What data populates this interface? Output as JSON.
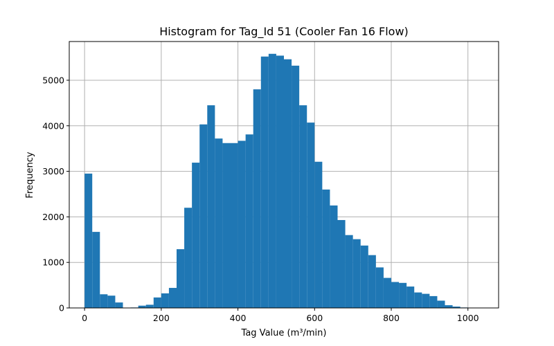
{
  "chart_data": {
    "type": "bar",
    "title": "Histogram for Tag_Id 51 (Cooler Fan 16 Flow)",
    "xlabel": "Tag Value (m³/min)",
    "ylabel": "Frequency",
    "xlim": [
      -40,
      1080
    ],
    "ylim": [
      0,
      5850
    ],
    "xticks": [
      0,
      200,
      400,
      600,
      800,
      1000
    ],
    "yticks": [
      0,
      1000,
      2000,
      3000,
      4000,
      5000
    ],
    "grid": true,
    "color": "#1f77b4",
    "bin_width": 20,
    "bin_start": 0,
    "values": [
      2950,
      1670,
      300,
      270,
      120,
      0,
      10,
      50,
      70,
      230,
      320,
      440,
      1290,
      2200,
      3190,
      4030,
      4450,
      3720,
      3620,
      3620,
      3670,
      3810,
      4800,
      5520,
      5580,
      5540,
      5460,
      5320,
      4450,
      4070,
      3210,
      2600,
      2250,
      1930,
      1600,
      1510,
      1370,
      1160,
      890,
      660,
      570,
      550,
      470,
      340,
      310,
      260,
      160,
      60,
      30,
      10
    ]
  }
}
